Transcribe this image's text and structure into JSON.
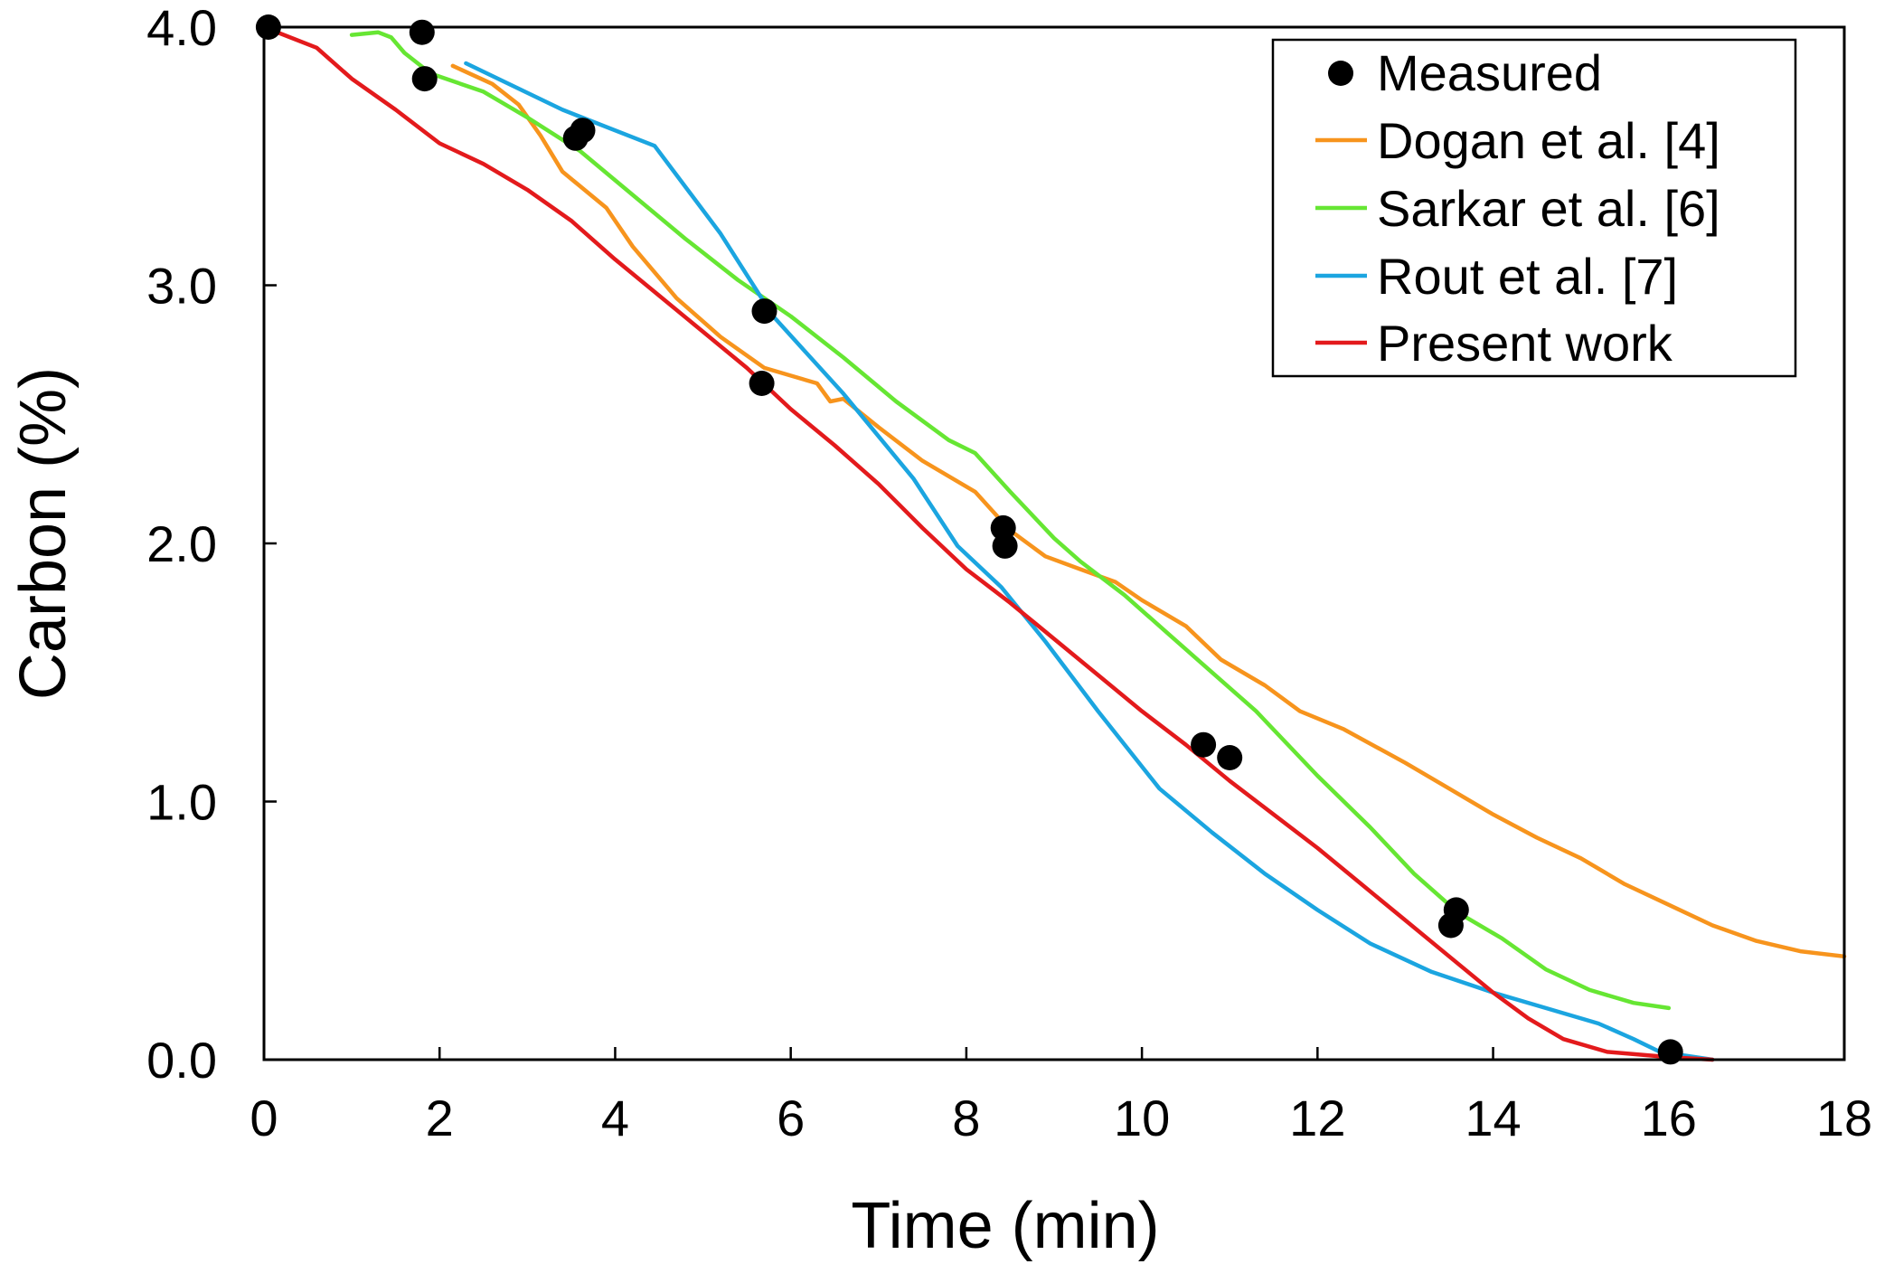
{
  "chart_data": {
    "type": "line",
    "title": "",
    "xlabel": "Time (min)",
    "ylabel": "Carbon (%)",
    "xlim": [
      0,
      18
    ],
    "ylim": [
      0,
      4.0
    ],
    "xticks": [
      0,
      2,
      4,
      6,
      8,
      10,
      12,
      14,
      16,
      18
    ],
    "xtick_labels": [
      "0",
      "2",
      "4",
      "6",
      "8",
      "10",
      "12",
      "14",
      "16",
      "18"
    ],
    "yticks": [
      0,
      1,
      2,
      3,
      4
    ],
    "ytick_labels": [
      "0.0",
      "1.0",
      "2.0",
      "3.0",
      "4.0"
    ],
    "grid": false,
    "legend_position": "top-right",
    "series": [
      {
        "name": "Measured",
        "kind": "scatter",
        "color": "#000000",
        "points": [
          [
            0.05,
            4.0
          ],
          [
            1.8,
            3.98
          ],
          [
            1.83,
            3.8
          ],
          [
            3.55,
            3.57
          ],
          [
            3.63,
            3.6
          ],
          [
            5.7,
            2.9
          ],
          [
            5.67,
            2.62
          ],
          [
            8.42,
            2.06
          ],
          [
            8.44,
            1.99
          ],
          [
            10.7,
            1.22
          ],
          [
            11.0,
            1.17
          ],
          [
            13.58,
            0.58
          ],
          [
            13.52,
            0.52
          ],
          [
            16.02,
            0.03
          ]
        ]
      },
      {
        "name": "Dogan et al. [4]",
        "kind": "line",
        "color": "#F7941D",
        "points": [
          [
            2.15,
            3.85
          ],
          [
            2.6,
            3.78
          ],
          [
            2.9,
            3.7
          ],
          [
            3.15,
            3.58
          ],
          [
            3.4,
            3.44
          ],
          [
            3.9,
            3.3
          ],
          [
            4.2,
            3.15
          ],
          [
            4.7,
            2.95
          ],
          [
            5.2,
            2.8
          ],
          [
            5.7,
            2.68
          ],
          [
            6.3,
            2.62
          ],
          [
            6.45,
            2.55
          ],
          [
            6.6,
            2.56
          ],
          [
            7.0,
            2.45
          ],
          [
            7.5,
            2.32
          ],
          [
            8.1,
            2.2
          ],
          [
            8.5,
            2.05
          ],
          [
            8.9,
            1.95
          ],
          [
            9.3,
            1.9
          ],
          [
            9.7,
            1.85
          ],
          [
            10.0,
            1.78
          ],
          [
            10.5,
            1.68
          ],
          [
            10.9,
            1.55
          ],
          [
            11.4,
            1.45
          ],
          [
            11.8,
            1.35
          ],
          [
            12.3,
            1.28
          ],
          [
            13.0,
            1.15
          ],
          [
            13.5,
            1.05
          ],
          [
            14.0,
            0.95
          ],
          [
            14.5,
            0.86
          ],
          [
            15.0,
            0.78
          ],
          [
            15.5,
            0.68
          ],
          [
            16.0,
            0.6
          ],
          [
            16.5,
            0.52
          ],
          [
            17.0,
            0.46
          ],
          [
            17.5,
            0.42
          ],
          [
            18.0,
            0.4
          ]
        ]
      },
      {
        "name": "Sarkar et al. [6]",
        "kind": "line",
        "color": "#66E633",
        "points": [
          [
            1.0,
            3.97
          ],
          [
            1.3,
            3.98
          ],
          [
            1.45,
            3.96
          ],
          [
            1.6,
            3.9
          ],
          [
            1.9,
            3.82
          ],
          [
            2.5,
            3.75
          ],
          [
            3.0,
            3.65
          ],
          [
            3.6,
            3.52
          ],
          [
            4.2,
            3.35
          ],
          [
            4.8,
            3.18
          ],
          [
            5.4,
            3.02
          ],
          [
            6.0,
            2.88
          ],
          [
            6.6,
            2.72
          ],
          [
            7.2,
            2.55
          ],
          [
            7.8,
            2.4
          ],
          [
            8.1,
            2.35
          ],
          [
            8.5,
            2.2
          ],
          [
            9.0,
            2.02
          ],
          [
            9.3,
            1.93
          ],
          [
            9.8,
            1.8
          ],
          [
            10.3,
            1.65
          ],
          [
            10.8,
            1.5
          ],
          [
            11.3,
            1.35
          ],
          [
            12.0,
            1.1
          ],
          [
            12.6,
            0.9
          ],
          [
            13.1,
            0.72
          ],
          [
            13.6,
            0.57
          ],
          [
            14.1,
            0.47
          ],
          [
            14.6,
            0.35
          ],
          [
            15.1,
            0.27
          ],
          [
            15.6,
            0.22
          ],
          [
            16.0,
            0.2
          ]
        ]
      },
      {
        "name": "Rout et al. [7]",
        "kind": "line",
        "color": "#1BA5E0",
        "points": [
          [
            2.3,
            3.86
          ],
          [
            3.4,
            3.68
          ],
          [
            4.45,
            3.54
          ],
          [
            5.2,
            3.2
          ],
          [
            5.8,
            2.88
          ],
          [
            6.6,
            2.58
          ],
          [
            7.4,
            2.25
          ],
          [
            7.9,
            1.99
          ],
          [
            8.4,
            1.83
          ],
          [
            8.9,
            1.62
          ],
          [
            9.5,
            1.35
          ],
          [
            10.2,
            1.05
          ],
          [
            10.8,
            0.88
          ],
          [
            11.4,
            0.72
          ],
          [
            12.0,
            0.58
          ],
          [
            12.6,
            0.45
          ],
          [
            13.3,
            0.34
          ],
          [
            14.0,
            0.26
          ],
          [
            14.6,
            0.2
          ],
          [
            15.2,
            0.14
          ],
          [
            15.6,
            0.08
          ],
          [
            15.9,
            0.03
          ],
          [
            16.5,
            0.0
          ]
        ]
      },
      {
        "name": "Present work",
        "kind": "line",
        "color": "#E31A1C",
        "points": [
          [
            0.0,
            4.0
          ],
          [
            0.6,
            3.92
          ],
          [
            1.0,
            3.8
          ],
          [
            1.5,
            3.68
          ],
          [
            2.0,
            3.55
          ],
          [
            2.5,
            3.47
          ],
          [
            3.0,
            3.37
          ],
          [
            3.5,
            3.25
          ],
          [
            4.0,
            3.1
          ],
          [
            4.5,
            2.96
          ],
          [
            5.0,
            2.82
          ],
          [
            5.5,
            2.68
          ],
          [
            6.0,
            2.52
          ],
          [
            6.5,
            2.38
          ],
          [
            7.0,
            2.23
          ],
          [
            7.5,
            2.06
          ],
          [
            8.0,
            1.9
          ],
          [
            8.5,
            1.77
          ],
          [
            9.0,
            1.63
          ],
          [
            9.5,
            1.49
          ],
          [
            10.0,
            1.35
          ],
          [
            10.5,
            1.22
          ],
          [
            11.0,
            1.08
          ],
          [
            11.5,
            0.95
          ],
          [
            12.0,
            0.82
          ],
          [
            12.5,
            0.68
          ],
          [
            13.0,
            0.54
          ],
          [
            13.5,
            0.4
          ],
          [
            14.0,
            0.26
          ],
          [
            14.4,
            0.16
          ],
          [
            14.8,
            0.08
          ],
          [
            15.3,
            0.03
          ],
          [
            16.0,
            0.01
          ],
          [
            16.5,
            0.0
          ]
        ]
      }
    ]
  }
}
